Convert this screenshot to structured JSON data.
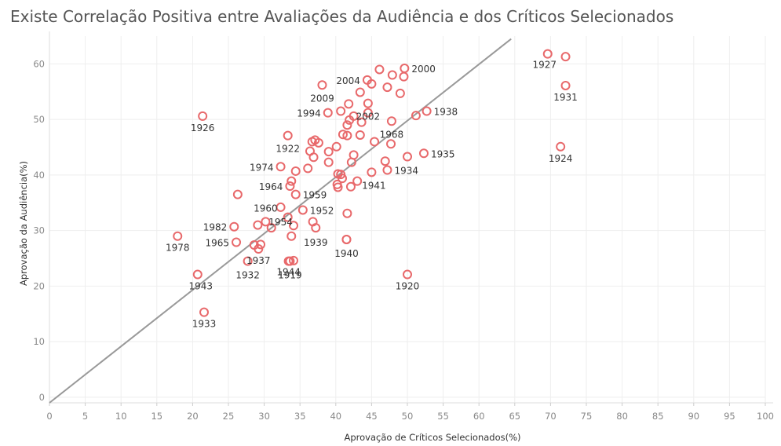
{
  "title": "Existe Correlação Positiva entre Avaliações da Audiência e dos Críticos Selecionados",
  "chart_data": {
    "type": "scatter",
    "title": "Existe Correlação Positiva entre Avaliações da Audiência e dos Críticos Selecionados",
    "xlabel": "Aprovação de Críticos Selecionados(%)",
    "ylabel": "Aprovação da Audiência(%)",
    "xlim": [
      0,
      100
    ],
    "ylim": [
      -1,
      65
    ],
    "x_ticks": [
      0,
      5,
      10,
      15,
      20,
      25,
      30,
      35,
      40,
      45,
      50,
      55,
      60,
      65,
      70,
      75,
      80,
      85,
      90,
      95,
      100
    ],
    "y_ticks": [
      0,
      10,
      20,
      30,
      40,
      50,
      60
    ],
    "grid": true,
    "marker": "circle-open",
    "point_color": "#e8696b",
    "trendline": {
      "color": "#999999",
      "from": [
        0,
        -1
      ],
      "to": [
        64.5,
        64.5
      ]
    },
    "points": [
      {
        "x": 69.6,
        "y": 61.8,
        "label": "1927"
      },
      {
        "x": 72.1,
        "y": 61.3,
        "label": ""
      },
      {
        "x": 72.1,
        "y": 56.1,
        "label": "1931"
      },
      {
        "x": 71.4,
        "y": 45.1,
        "label": "1924"
      },
      {
        "x": 49.6,
        "y": 59.2,
        "label": "2000"
      },
      {
        "x": 46.1,
        "y": 59.0,
        "label": ""
      },
      {
        "x": 44.4,
        "y": 57.1,
        "label": "2004"
      },
      {
        "x": 45.0,
        "y": 56.4,
        "label": ""
      },
      {
        "x": 38.1,
        "y": 56.2,
        "label": "2009"
      },
      {
        "x": 47.9,
        "y": 58.0,
        "label": ""
      },
      {
        "x": 49.5,
        "y": 57.7,
        "label": ""
      },
      {
        "x": 47.2,
        "y": 55.8,
        "label": ""
      },
      {
        "x": 49.0,
        "y": 54.7,
        "label": ""
      },
      {
        "x": 43.4,
        "y": 54.9,
        "label": ""
      },
      {
        "x": 41.8,
        "y": 52.8,
        "label": ""
      },
      {
        "x": 44.5,
        "y": 52.9,
        "label": "2002"
      },
      {
        "x": 40.7,
        "y": 51.5,
        "label": ""
      },
      {
        "x": 38.9,
        "y": 51.2,
        "label": "1994"
      },
      {
        "x": 42.5,
        "y": 50.6,
        "label": ""
      },
      {
        "x": 44.5,
        "y": 51.2,
        "label": ""
      },
      {
        "x": 41.9,
        "y": 49.9,
        "label": ""
      },
      {
        "x": 43.6,
        "y": 49.5,
        "label": ""
      },
      {
        "x": 41.6,
        "y": 49.0,
        "label": ""
      },
      {
        "x": 47.8,
        "y": 49.7,
        "label": "1968"
      },
      {
        "x": 51.2,
        "y": 50.7,
        "label": ""
      },
      {
        "x": 52.7,
        "y": 51.5,
        "label": "1938"
      },
      {
        "x": 21.4,
        "y": 50.6,
        "label": "1926"
      },
      {
        "x": 41.0,
        "y": 47.3,
        "label": ""
      },
      {
        "x": 41.6,
        "y": 47.1,
        "label": ""
      },
      {
        "x": 43.4,
        "y": 47.2,
        "label": ""
      },
      {
        "x": 33.3,
        "y": 47.1,
        "label": "1922"
      },
      {
        "x": 37.1,
        "y": 46.3,
        "label": ""
      },
      {
        "x": 36.7,
        "y": 46.0,
        "label": ""
      },
      {
        "x": 37.6,
        "y": 45.8,
        "label": ""
      },
      {
        "x": 40.1,
        "y": 45.1,
        "label": ""
      },
      {
        "x": 45.4,
        "y": 46.0,
        "label": ""
      },
      {
        "x": 47.7,
        "y": 45.6,
        "label": ""
      },
      {
        "x": 36.4,
        "y": 44.3,
        "label": ""
      },
      {
        "x": 39.0,
        "y": 44.2,
        "label": ""
      },
      {
        "x": 36.9,
        "y": 43.2,
        "label": ""
      },
      {
        "x": 42.5,
        "y": 43.6,
        "label": ""
      },
      {
        "x": 50.0,
        "y": 43.3,
        "label": ""
      },
      {
        "x": 52.3,
        "y": 43.9,
        "label": "1935"
      },
      {
        "x": 39.0,
        "y": 42.3,
        "label": ""
      },
      {
        "x": 42.2,
        "y": 42.3,
        "label": ""
      },
      {
        "x": 46.9,
        "y": 42.5,
        "label": ""
      },
      {
        "x": 32.3,
        "y": 41.5,
        "label": "1974"
      },
      {
        "x": 36.1,
        "y": 41.2,
        "label": ""
      },
      {
        "x": 34.4,
        "y": 40.7,
        "label": ""
      },
      {
        "x": 47.2,
        "y": 40.9,
        "label": "1934"
      },
      {
        "x": 45.0,
        "y": 40.5,
        "label": ""
      },
      {
        "x": 40.3,
        "y": 40.2,
        "label": ""
      },
      {
        "x": 40.7,
        "y": 40.1,
        "label": ""
      },
      {
        "x": 40.9,
        "y": 39.4,
        "label": ""
      },
      {
        "x": 33.8,
        "y": 38.9,
        "label": ""
      },
      {
        "x": 43.0,
        "y": 38.9,
        "label": "1941"
      },
      {
        "x": 33.6,
        "y": 38.0,
        "label": "1964"
      },
      {
        "x": 40.2,
        "y": 38.3,
        "label": ""
      },
      {
        "x": 40.3,
        "y": 37.8,
        "label": ""
      },
      {
        "x": 42.1,
        "y": 37.9,
        "label": ""
      },
      {
        "x": 26.3,
        "y": 36.5,
        "label": ""
      },
      {
        "x": 34.4,
        "y": 36.5,
        "label": "1959"
      },
      {
        "x": 32.3,
        "y": 34.2,
        "label": "1954"
      },
      {
        "x": 35.4,
        "y": 33.7,
        "label": "1952"
      },
      {
        "x": 41.6,
        "y": 33.1,
        "label": ""
      },
      {
        "x": 33.3,
        "y": 32.4,
        "label": ""
      },
      {
        "x": 30.2,
        "y": 31.6,
        "label": "1960"
      },
      {
        "x": 36.8,
        "y": 31.6,
        "label": ""
      },
      {
        "x": 29.1,
        "y": 31.0,
        "label": ""
      },
      {
        "x": 25.8,
        "y": 30.7,
        "label": "1982"
      },
      {
        "x": 31.0,
        "y": 30.5,
        "label": ""
      },
      {
        "x": 34.1,
        "y": 30.9,
        "label": ""
      },
      {
        "x": 37.2,
        "y": 30.5,
        "label": "1939"
      },
      {
        "x": 33.8,
        "y": 29.0,
        "label": ""
      },
      {
        "x": 41.5,
        "y": 28.4,
        "label": ""
      },
      {
        "x": 17.9,
        "y": 29.0,
        "label": "1978"
      },
      {
        "x": 26.1,
        "y": 27.9,
        "label": "1965"
      },
      {
        "x": 28.6,
        "y": 27.4,
        "label": ""
      },
      {
        "x": 29.5,
        "y": 27.5,
        "label": ""
      },
      {
        "x": 29.2,
        "y": 26.7,
        "label": "1937"
      },
      {
        "x": 41.5,
        "y": 28.4,
        "label": "1940"
      },
      {
        "x": 33.4,
        "y": 24.5,
        "label": "1944"
      },
      {
        "x": 34.1,
        "y": 24.6,
        "label": ""
      },
      {
        "x": 27.7,
        "y": 24.5,
        "label": "1932"
      },
      {
        "x": 33.6,
        "y": 24.5,
        "label": "1919"
      },
      {
        "x": 20.7,
        "y": 22.1,
        "label": "1943"
      },
      {
        "x": 50.0,
        "y": 22.1,
        "label": "1920"
      },
      {
        "x": 21.6,
        "y": 15.3,
        "label": "1933"
      }
    ]
  }
}
